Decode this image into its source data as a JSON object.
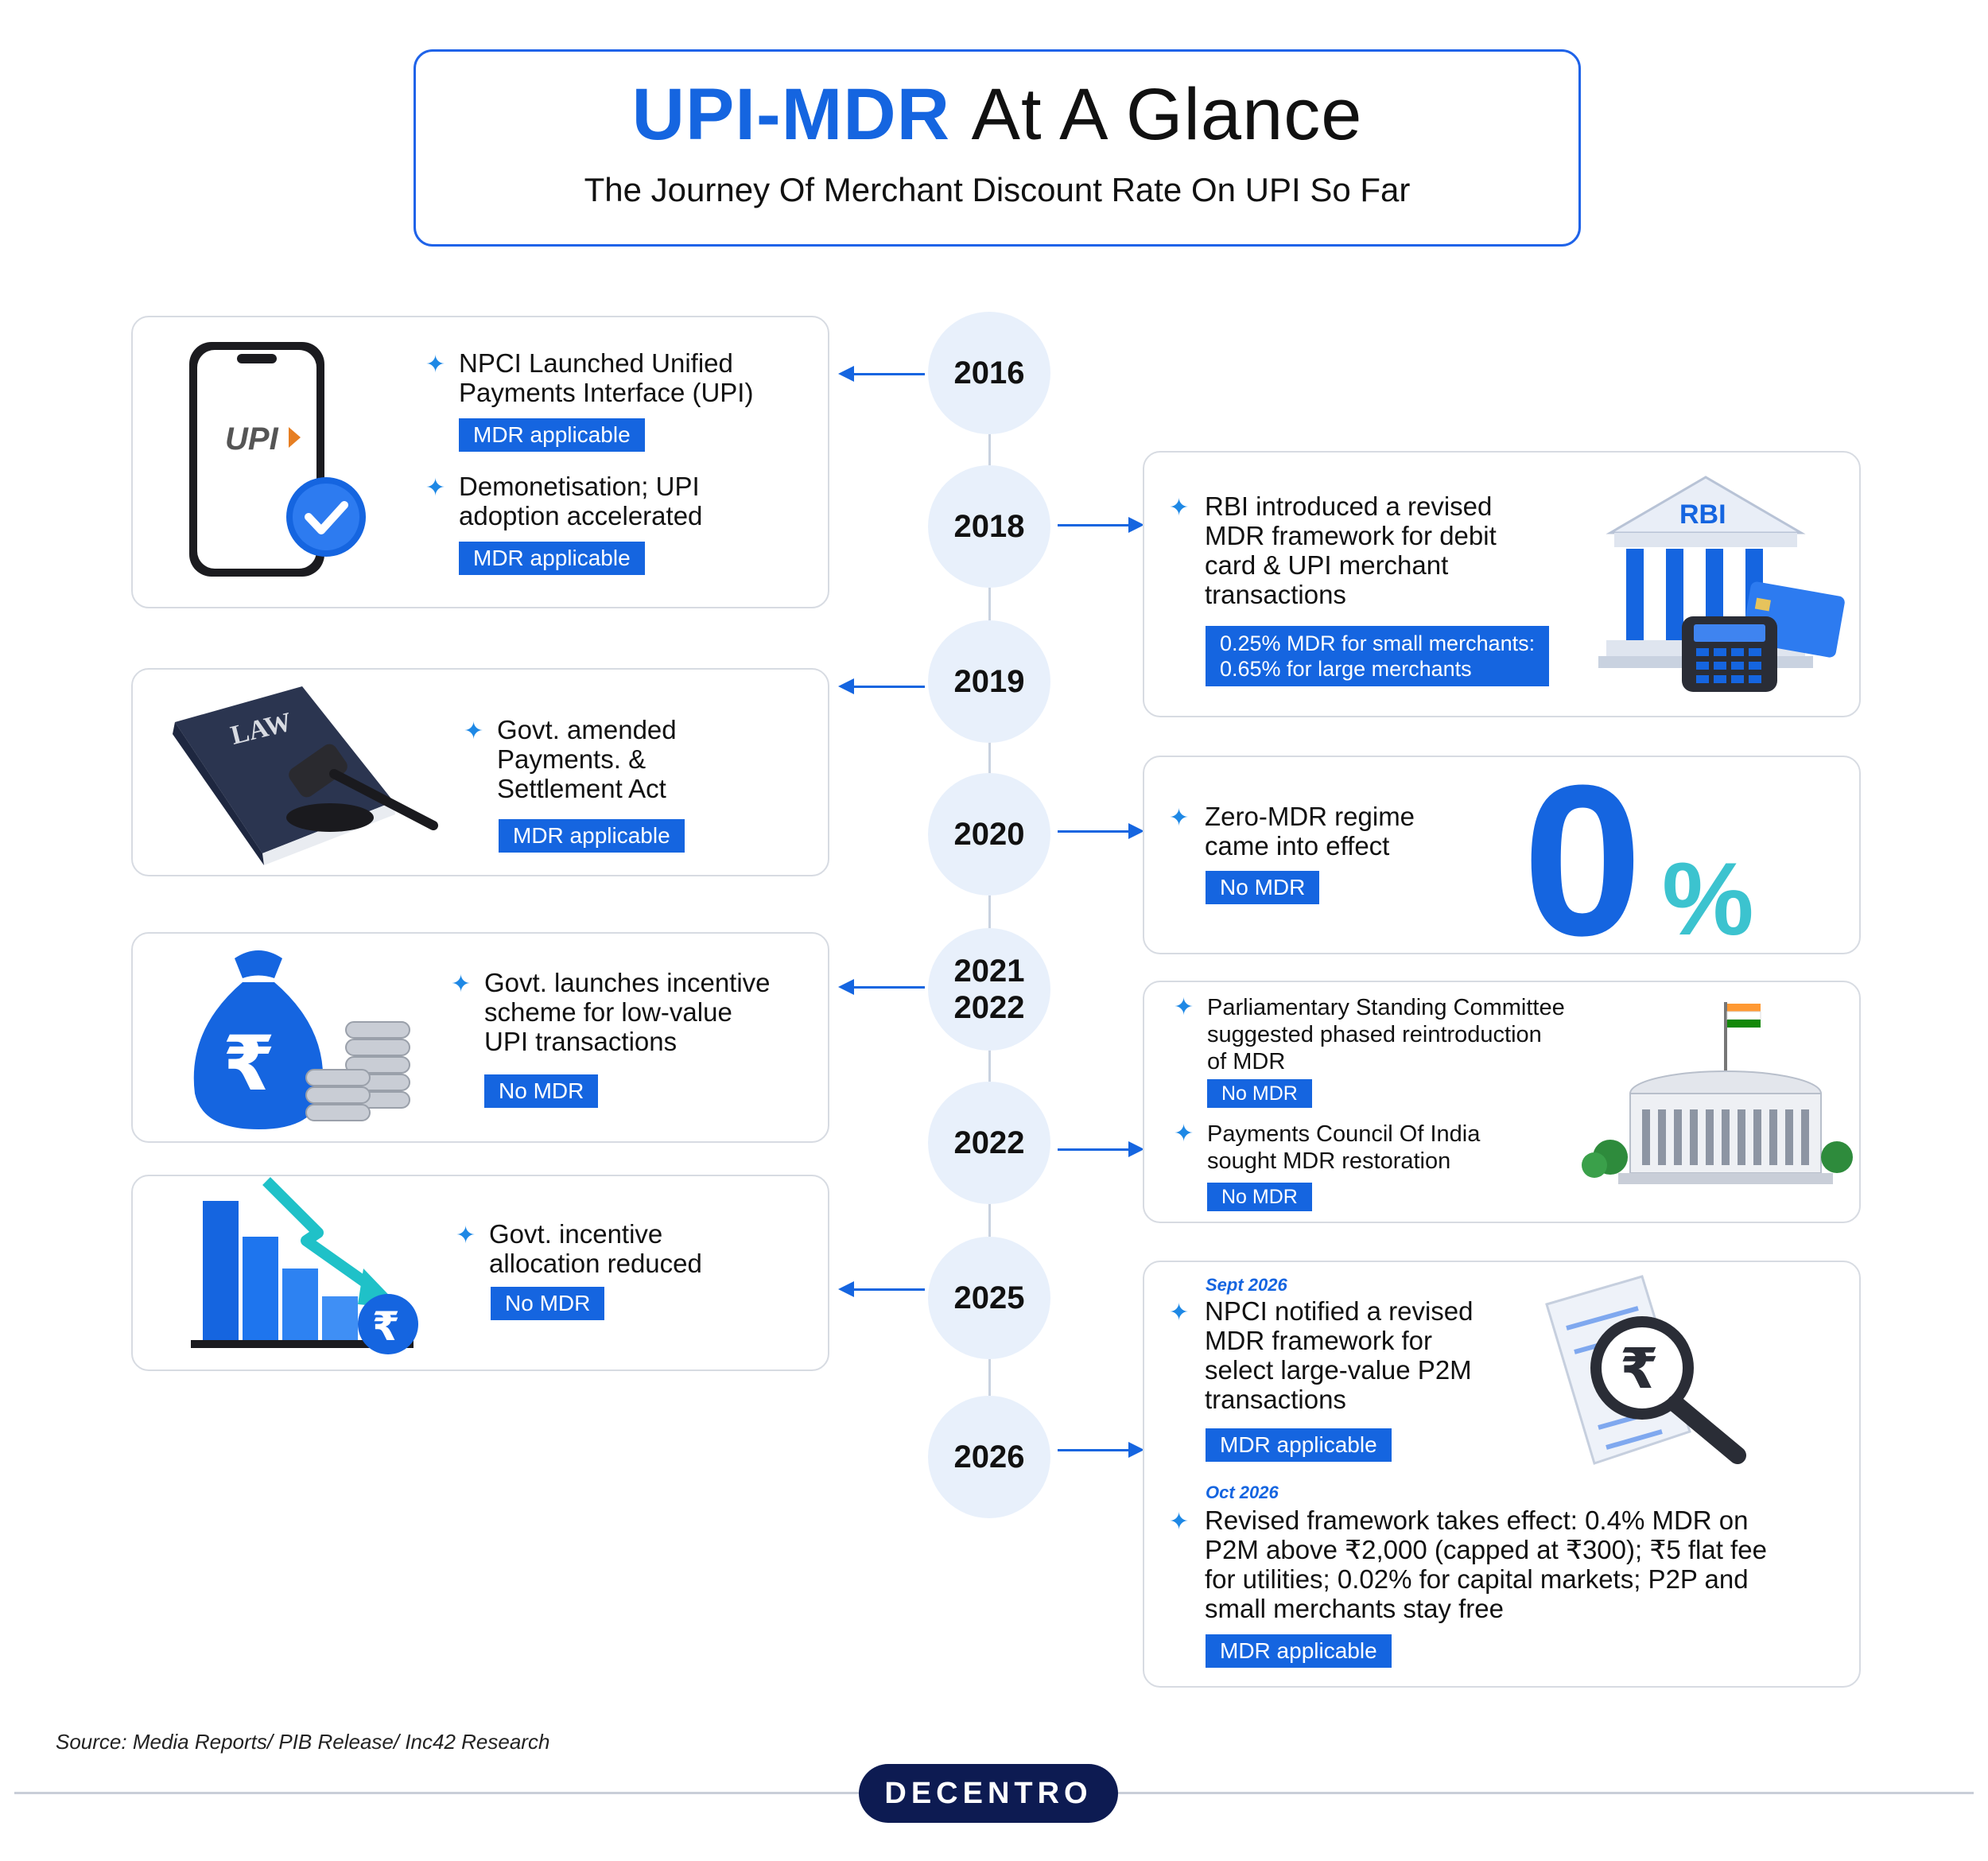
{
  "header": {
    "title_highlight": "UPI-MDR",
    "title_rest": "At A Glance",
    "subtitle": "The Journey Of Merchant Discount Rate On UPI So Far"
  },
  "timeline": {
    "years": [
      "2016",
      "2018",
      "2019",
      "2020",
      "2021",
      "2022",
      "2022",
      "2025",
      "2026"
    ]
  },
  "events": {
    "e2016a": {
      "text_l1": "NPCI Launched Unified",
      "text_l2": "Payments Interface (UPI)",
      "tag": "MDR applicable"
    },
    "e2016b": {
      "text_l1": "Demonetisation; UPI",
      "text_l2": "adoption accelerated",
      "tag": "MDR applicable"
    },
    "e2018": {
      "text_l1": "RBI introduced a revised",
      "text_l2": "MDR framework for debit",
      "text_l3": "card & UPI merchant",
      "text_l4": "transactions",
      "tag_l1": "0.25% MDR for small merchants:",
      "tag_l2": "0.65% for large merchants",
      "image_label": "RBI"
    },
    "e2019": {
      "text_l1": "Govt. amended",
      "text_l2": "Payments. &",
      "text_l3": "Settlement Act",
      "tag": "MDR applicable",
      "image_label": "LAW"
    },
    "e2020": {
      "text_l1": "Zero-MDR regime",
      "text_l2": "came into effect",
      "tag": "No MDR",
      "image_zero": "0",
      "image_pct": "%"
    },
    "e2021": {
      "text_l1": "Govt. launches incentive",
      "text_l2": "scheme for low-value",
      "text_l3": "UPI transactions",
      "tag": "No MDR",
      "image_rupee": "₹"
    },
    "e2022a": {
      "text_l1": "Parliamentary Standing Committee",
      "text_l2": "suggested phased reintroduction",
      "text_l3": "of MDR",
      "tag": "No MDR"
    },
    "e2022b": {
      "text_l1": "Payments Council Of India",
      "text_l2": "sought MDR restoration",
      "tag": "No MDR"
    },
    "e2025": {
      "text_l1": "Govt. incentive",
      "text_l2": "allocation reduced",
      "tag": "No MDR",
      "image_rupee": "₹"
    },
    "e2026a": {
      "date": "Sept 2026",
      "text_l1": "NPCI notified a revised",
      "text_l2": "MDR framework for",
      "text_l3": "select large-value P2M",
      "text_l4": "transactions",
      "tag": "MDR applicable",
      "image_rupee": "₹"
    },
    "e2026b": {
      "date": "Oct 2026",
      "text_l1": "Revised framework takes effect: 0.4% MDR on",
      "text_l2": "P2M above ₹2,000 (capped at ₹300); ₹5 flat fee",
      "text_l3": "for utilities; 0.02% for capital markets; P2P and",
      "text_l4": "small merchants stay free",
      "tag": "MDR applicable"
    }
  },
  "phone_logo": "UPI",
  "source": "Source: Media Reports/ PIB Release/ Inc42 Research",
  "brand": "DECENTRO",
  "colors": {
    "accent": "#1565e0",
    "star": "#1e88e5",
    "brand_bg": "#0d1b52",
    "year_bg": "#e8f0fb"
  }
}
